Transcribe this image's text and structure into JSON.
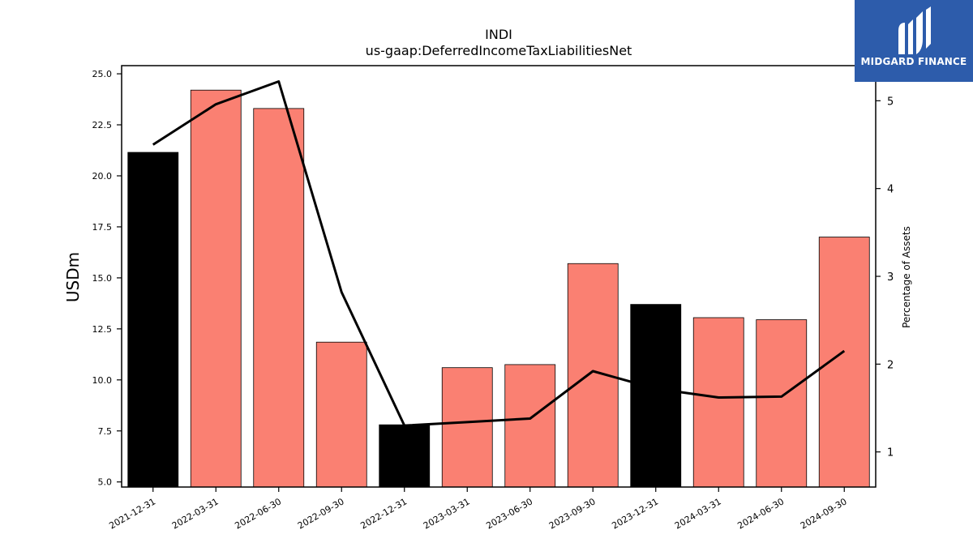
{
  "chart_data": {
    "type": "bar",
    "title": "INDI",
    "subtitle": "us-gaap:DeferredIncomeTaxLiabilitiesNet",
    "xlabel": "",
    "ylabel": "USDm",
    "y2label": "Percentage of Assets",
    "ylim": [
      4.75,
      25.4
    ],
    "y2lim": [
      0.6,
      5.4
    ],
    "yticks": [
      "5.0",
      "7.5",
      "10.0",
      "12.5",
      "15.0",
      "17.5",
      "20.0",
      "22.5",
      "25.0"
    ],
    "y2ticks": [
      "1",
      "2",
      "3",
      "4",
      "5"
    ],
    "categories": [
      "2021-12-31",
      "2022-03-31",
      "2022-06-30",
      "2022-09-30",
      "2022-12-31",
      "2023-03-31",
      "2023-06-30",
      "2023-09-30",
      "2023-12-31",
      "2024-03-31",
      "2024-06-30",
      "2024-09-30"
    ],
    "values": [
      21.15,
      24.2,
      23.3,
      11.85,
      7.8,
      10.6,
      10.75,
      15.7,
      13.7,
      13.05,
      12.95,
      17.0
    ],
    "bar_colors": [
      "#000000",
      "#fa8072",
      "#fa8072",
      "#fa8072",
      "#000000",
      "#fa8072",
      "#fa8072",
      "#fa8072",
      "#000000",
      "#fa8072",
      "#fa8072",
      "#fa8072"
    ],
    "line_series": {
      "axis": "right",
      "values": [
        4.5,
        4.96,
        5.22,
        2.82,
        1.3,
        1.34,
        1.38,
        1.92,
        1.72,
        1.62,
        1.63,
        2.15
      ],
      "color": "#000000"
    },
    "grid": false
  },
  "logo": {
    "text": "MIDGARD FINANCE",
    "background": "#2d5cab"
  }
}
